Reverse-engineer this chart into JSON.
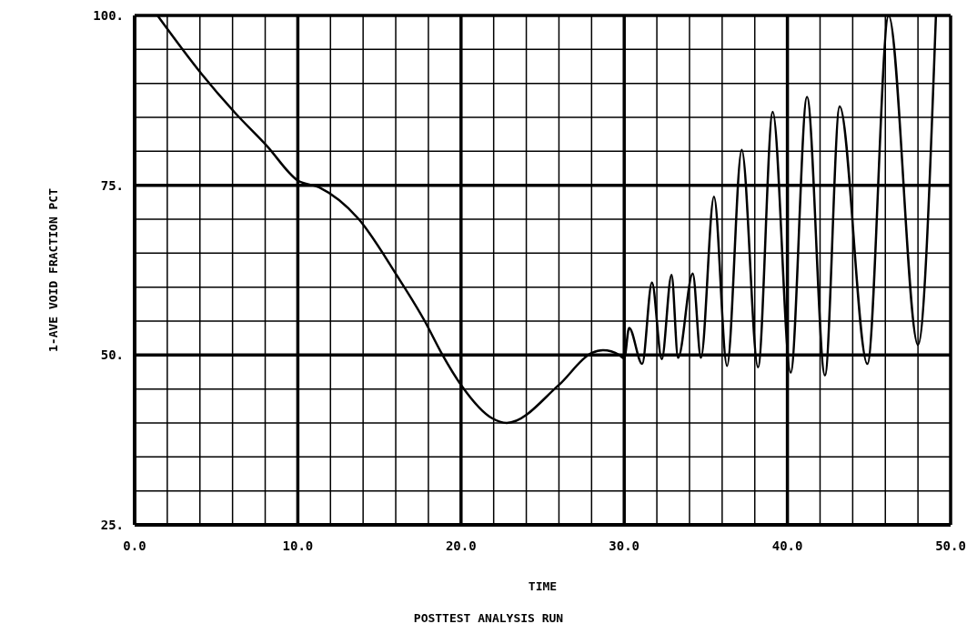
{
  "chart_data": {
    "type": "line",
    "xlabel": "TIME",
    "ylabel": "1-AVE VOID FRACTION PCT",
    "annotations": [
      "POSTTEST ANALYSIS RUN"
    ],
    "xlim": [
      0,
      50
    ],
    "ylim": [
      25,
      100
    ],
    "xticks": [
      {
        "value": 0,
        "label": "0.0"
      },
      {
        "value": 2,
        "label": null
      },
      {
        "value": 4,
        "label": null
      },
      {
        "value": 6,
        "label": null
      },
      {
        "value": 8,
        "label": null
      },
      {
        "value": 10,
        "label": "10.0"
      },
      {
        "value": 12,
        "label": null
      },
      {
        "value": 14,
        "label": null
      },
      {
        "value": 16,
        "label": null
      },
      {
        "value": 18,
        "label": null
      },
      {
        "value": 20,
        "label": "20.0"
      },
      {
        "value": 22,
        "label": null
      },
      {
        "value": 24,
        "label": null
      },
      {
        "value": 26,
        "label": null
      },
      {
        "value": 28,
        "label": null
      },
      {
        "value": 30,
        "label": "30.0"
      },
      {
        "value": 32,
        "label": null
      },
      {
        "value": 34,
        "label": null
      },
      {
        "value": 36,
        "label": null
      },
      {
        "value": 38,
        "label": null
      },
      {
        "value": 40,
        "label": "40.0"
      },
      {
        "value": 42,
        "label": null
      },
      {
        "value": 44,
        "label": null
      },
      {
        "value": 46,
        "label": null
      },
      {
        "value": 48,
        "label": null
      },
      {
        "value": 50,
        "label": "50.0"
      }
    ],
    "yticks": [
      {
        "value": 25,
        "label": "25."
      },
      {
        "value": 30,
        "label": null
      },
      {
        "value": 35,
        "label": null
      },
      {
        "value": 40,
        "label": null
      },
      {
        "value": 45,
        "label": null
      },
      {
        "value": 50,
        "label": "50."
      },
      {
        "value": 55,
        "label": null
      },
      {
        "value": 60,
        "label": null
      },
      {
        "value": 65,
        "label": null
      },
      {
        "value": 70,
        "label": null
      },
      {
        "value": 75,
        "label": "75."
      },
      {
        "value": 80,
        "label": null
      },
      {
        "value": 85,
        "label": null
      },
      {
        "value": 90,
        "label": null
      },
      {
        "value": 95,
        "label": null
      },
      {
        "value": 100,
        "label": "100."
      }
    ],
    "grid": true,
    "marker": "none",
    "line_style": "solid",
    "series": [
      {
        "color": "#000000",
        "x": [
          1.4,
          4.1,
          6.1,
          8.1,
          10.0,
          11.3,
          13.7,
          16.1,
          17.8,
          18.8,
          20.0,
          21.9,
          22.8,
          26.0,
          28.0,
          28.7,
          29.7,
          30.0,
          30.3,
          31.1,
          31.7,
          32.3,
          32.9,
          33.3,
          34.2,
          34.7,
          35.5,
          36.3,
          37.2,
          38.2,
          39.1,
          40.2,
          41.2,
          42.3,
          43.2,
          44.9,
          46.2,
          48.0,
          49.1
        ],
        "values": [
          100,
          91.4,
          85.8,
          80.8,
          75.7,
          74.7,
          70.1,
          61.6,
          54.9,
          50.3,
          45.6,
          40.7,
          40,
          45.6,
          50.3,
          50.7,
          50,
          49.5,
          54,
          48.7,
          60.7,
          49.4,
          61.8,
          49.6,
          62,
          49.6,
          73.3,
          48.4,
          80.2,
          48.2,
          85.8,
          47.4,
          88,
          47,
          86.6,
          48.7,
          100,
          51.5,
          100
        ]
      }
    ]
  }
}
